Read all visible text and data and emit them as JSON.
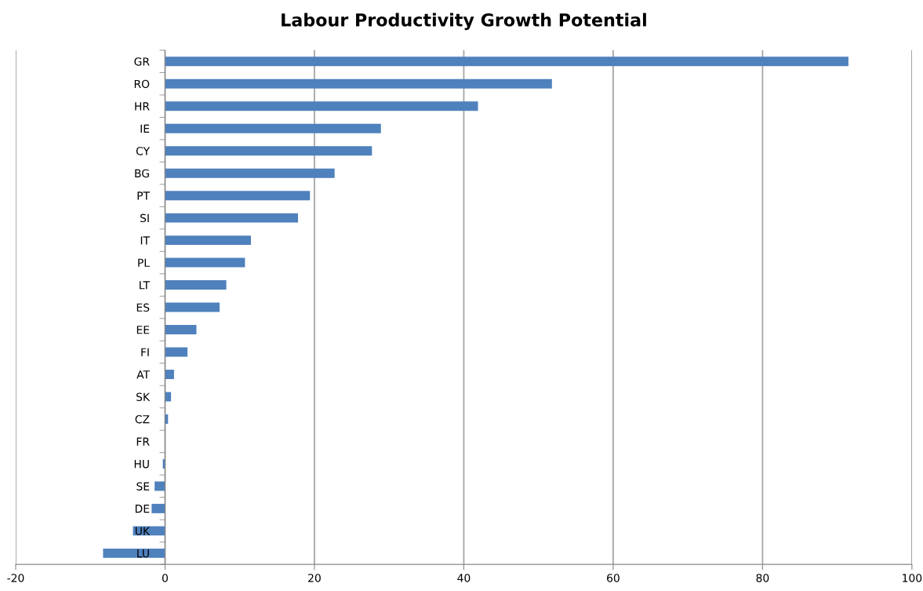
{
  "chart_data": {
    "type": "bar",
    "orientation": "horizontal",
    "title": "Labour Productivity Growth Potential",
    "categories": [
      "GR",
      "RO",
      "HR",
      "IE",
      "CY",
      "BG",
      "PT",
      "SI",
      "IT",
      "PL",
      "LT",
      "ES",
      "EE",
      "FI",
      "AT",
      "SK",
      "CZ",
      "FR",
      "HU",
      "SE",
      "DE",
      "UK",
      "LU"
    ],
    "values": [
      91.5,
      51.8,
      41.9,
      28.9,
      27.7,
      22.7,
      19.4,
      17.8,
      11.5,
      10.7,
      8.2,
      7.3,
      4.2,
      3.0,
      1.2,
      0.8,
      0.4,
      0.0,
      -0.3,
      -1.4,
      -1.8,
      -4.3,
      -8.3
    ],
    "color": "#4f81bd",
    "xlim": [
      -20,
      100
    ],
    "xticks": [
      -20,
      0,
      20,
      40,
      60,
      80,
      100
    ],
    "grid": "x"
  }
}
